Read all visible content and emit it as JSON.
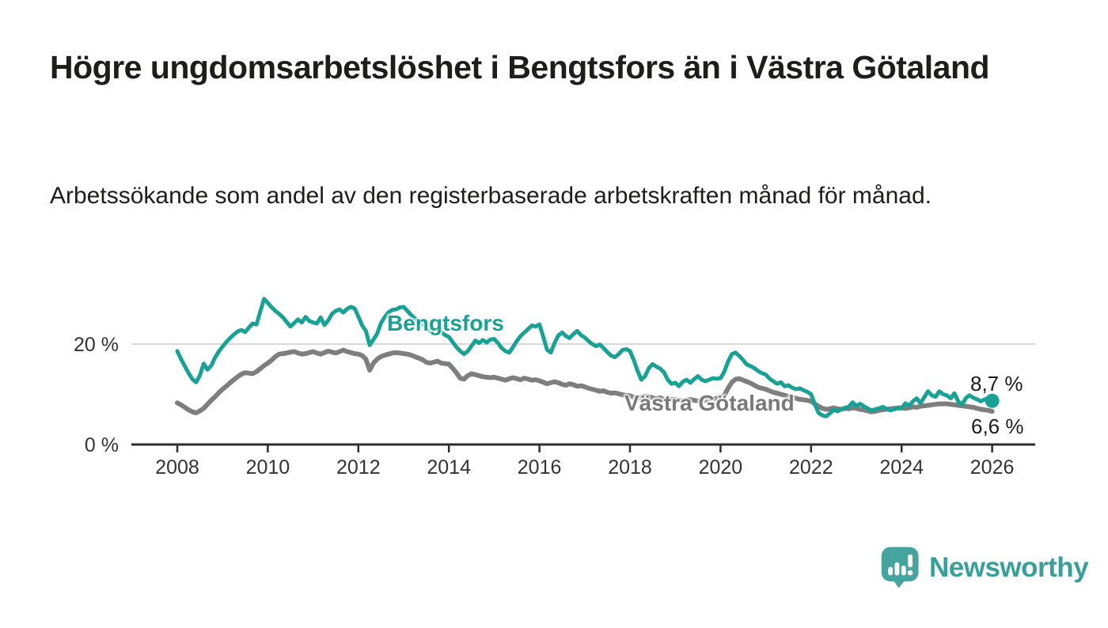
{
  "colors": {
    "background": "#ffffff",
    "title_text": "#1d1d1b",
    "axis_text": "#333333",
    "axis_line": "#2e2e2e",
    "gridline": "#d9d9d9",
    "bengtsfors_line": "#17a295",
    "vastra_line": "#7e7e7e",
    "vastra_label": "#797979",
    "value_label_text": "#1b1b1b",
    "logo_teal": "#38a09a"
  },
  "header": {
    "title": "Högre ungdomsarbetslöshet i Bengtsfors än i Västra Götaland",
    "subtitle": "Arbetssökande som andel av den registerbaserade arbetskraften månad för månad."
  },
  "annotations": {
    "series_label_1": "Bengtsfors",
    "series_label_2": "Västra Götaland",
    "end_value_1": "8,7 %",
    "end_value_2": "6,6 %"
  },
  "footer": {
    "brand": "Newsworthy"
  },
  "chart_data": {
    "type": "line",
    "title": "Högre ungdomsarbetslöshet i Bengtsfors än i Västra Götaland",
    "subtitle": "Arbetssökande som andel av den registerbaserade arbetskraften månad för månad.",
    "unit": "%",
    "x_start_year": 2008,
    "x_step_months": 1,
    "x_end": "2026-01",
    "x_ticks": [
      2008,
      2010,
      2012,
      2014,
      2016,
      2018,
      2020,
      2022,
      2024,
      2026
    ],
    "y_tick_labels": [
      {
        "value": 20,
        "label": "20 %"
      },
      {
        "value": 0,
        "label": "0 %"
      }
    ],
    "ylim": [
      0,
      30
    ],
    "grid": "single horizontal gridline at 20%",
    "legend_position": "inline labels on lines",
    "series": [
      {
        "name": "Bengtsfors",
        "color": "#17a295",
        "end_label": "8,7 %",
        "end_value": 8.7,
        "values": [
          18.6,
          17.0,
          15.6,
          14.2,
          13.0,
          12.4,
          13.8,
          16.1,
          14.9,
          15.7,
          17.3,
          18.5,
          19.5,
          20.4,
          21.2,
          21.9,
          22.5,
          22.8,
          22.4,
          23.3,
          24.1,
          23.9,
          26.5,
          29.0,
          28.2,
          27.3,
          26.6,
          26.0,
          25.3,
          24.4,
          23.5,
          24.2,
          24.9,
          24.3,
          25.4,
          24.6,
          24.3,
          24.1,
          25.3,
          23.8,
          24.7,
          26.0,
          26.6,
          26.9,
          26.3,
          27.0,
          27.4,
          27.1,
          25.5,
          23.7,
          22.6,
          19.8,
          20.9,
          22.1,
          24.2,
          25.4,
          26.3,
          26.8,
          26.9,
          27.3,
          27.4,
          26.6,
          25.8,
          25.1,
          24.6,
          24.0,
          23.2,
          22.6,
          22.3,
          22.8,
          22.4,
          21.8,
          21.4,
          20.4,
          19.4,
          18.6,
          18.0,
          18.6,
          19.6,
          20.7,
          20.2,
          20.8,
          20.3,
          20.9,
          21.0,
          20.2,
          19.2,
          18.6,
          18.3,
          19.4,
          20.6,
          21.6,
          22.3,
          23.0,
          23.7,
          23.5,
          23.9,
          21.5,
          18.9,
          18.3,
          20.2,
          21.7,
          22.3,
          21.6,
          21.2,
          22.0,
          22.6,
          21.8,
          21.3,
          20.6,
          20.0,
          19.6,
          19.9,
          19.2,
          18.4,
          17.7,
          17.4,
          18.0,
          18.8,
          19.0,
          18.6,
          16.8,
          14.7,
          12.9,
          13.6,
          15.2,
          16.0,
          15.5,
          15.1,
          14.4,
          12.9,
          12.1,
          12.3,
          11.6,
          12.5,
          12.9,
          12.3,
          13.0,
          13.6,
          12.9,
          12.6,
          12.9,
          13.2,
          13.1,
          13.2,
          14.5,
          16.5,
          18.0,
          18.3,
          17.6,
          16.8,
          15.9,
          15.6,
          15.2,
          14.6,
          14.2,
          13.9,
          13.1,
          12.6,
          12.1,
          12.4,
          11.6,
          11.8,
          11.3,
          11.0,
          11.2,
          10.8,
          10.5,
          10.0,
          8.0,
          6.3,
          5.8,
          5.6,
          6.2,
          6.9,
          6.6,
          7.0,
          7.3,
          7.5,
          8.4,
          7.7,
          8.1,
          7.6,
          7.2,
          6.8,
          7.0,
          7.2,
          7.5,
          7.1,
          6.8,
          7.0,
          7.2,
          7.2,
          8.2,
          7.7,
          8.6,
          9.2,
          8.2,
          9.4,
          10.6,
          9.8,
          9.5,
          10.6,
          10.0,
          9.8,
          9.2,
          10.2,
          8.6,
          7.9,
          9.2,
          9.8,
          9.3,
          9.0,
          8.6,
          9.0,
          9.2,
          8.7
        ]
      },
      {
        "name": "Västra Götaland",
        "color": "#7e7e7e",
        "end_label": "6,6 %",
        "end_value": 6.6,
        "values": [
          8.3,
          7.9,
          7.4,
          6.9,
          6.5,
          6.3,
          6.7,
          7.2,
          8.0,
          8.8,
          9.5,
          10.3,
          11.0,
          11.6,
          12.3,
          12.9,
          13.5,
          14.0,
          14.3,
          14.2,
          14.1,
          14.5,
          15.1,
          15.7,
          16.2,
          16.8,
          17.5,
          18.0,
          18.1,
          18.2,
          18.4,
          18.5,
          18.2,
          18.0,
          18.1,
          18.3,
          18.5,
          18.2,
          18.0,
          18.3,
          18.6,
          18.4,
          18.2,
          18.5,
          18.8,
          18.5,
          18.3,
          18.1,
          18.0,
          17.7,
          17.0,
          14.8,
          16.2,
          17.0,
          17.5,
          17.8,
          18.0,
          18.2,
          18.3,
          18.2,
          18.1,
          18.0,
          17.8,
          17.5,
          17.2,
          16.9,
          16.4,
          16.2,
          16.4,
          16.6,
          16.2,
          16.1,
          16.0,
          15.2,
          14.3,
          13.2,
          13.0,
          13.7,
          14.1,
          13.9,
          13.7,
          13.5,
          13.4,
          13.3,
          13.4,
          13.2,
          13.0,
          12.8,
          13.1,
          13.3,
          13.1,
          12.9,
          13.2,
          13.0,
          12.8,
          12.9,
          12.7,
          12.4,
          12.1,
          12.3,
          12.5,
          12.3,
          12.0,
          11.8,
          12.1,
          11.9,
          11.6,
          11.7,
          11.5,
          11.2,
          11.0,
          10.8,
          10.6,
          10.7,
          10.4,
          10.2,
          10.3,
          10.1,
          9.9,
          9.8,
          9.7,
          9.4,
          9.2,
          9.4,
          9.6,
          9.5,
          9.3,
          9.1,
          9.3,
          9.0,
          8.9,
          9.0,
          9.0,
          8.8,
          8.7,
          8.9,
          9.0,
          8.8,
          8.7,
          8.9,
          8.8,
          9.0,
          9.1,
          9.2,
          9.3,
          9.8,
          11.2,
          12.4,
          13.0,
          13.1,
          12.8,
          12.5,
          12.2,
          11.8,
          11.4,
          11.2,
          11.0,
          10.7,
          10.4,
          10.2,
          10.0,
          9.8,
          9.6,
          9.4,
          9.2,
          9.0,
          8.9,
          8.8,
          8.6,
          8.1,
          7.6,
          7.2,
          7.0,
          7.1,
          7.3,
          7.1,
          7.0,
          7.2,
          7.1,
          7.3,
          7.2,
          7.0,
          6.9,
          6.7,
          6.5,
          6.6,
          6.8,
          6.9,
          7.0,
          7.1,
          7.2,
          7.3,
          7.3,
          7.2,
          7.3,
          7.5,
          7.4,
          7.6,
          7.7,
          7.8,
          7.9,
          8.0,
          8.1,
          8.1,
          8.1,
          8.0,
          7.9,
          7.8,
          7.7,
          7.6,
          7.5,
          7.4,
          7.2,
          7.0,
          6.9,
          6.8,
          6.6
        ]
      }
    ]
  }
}
